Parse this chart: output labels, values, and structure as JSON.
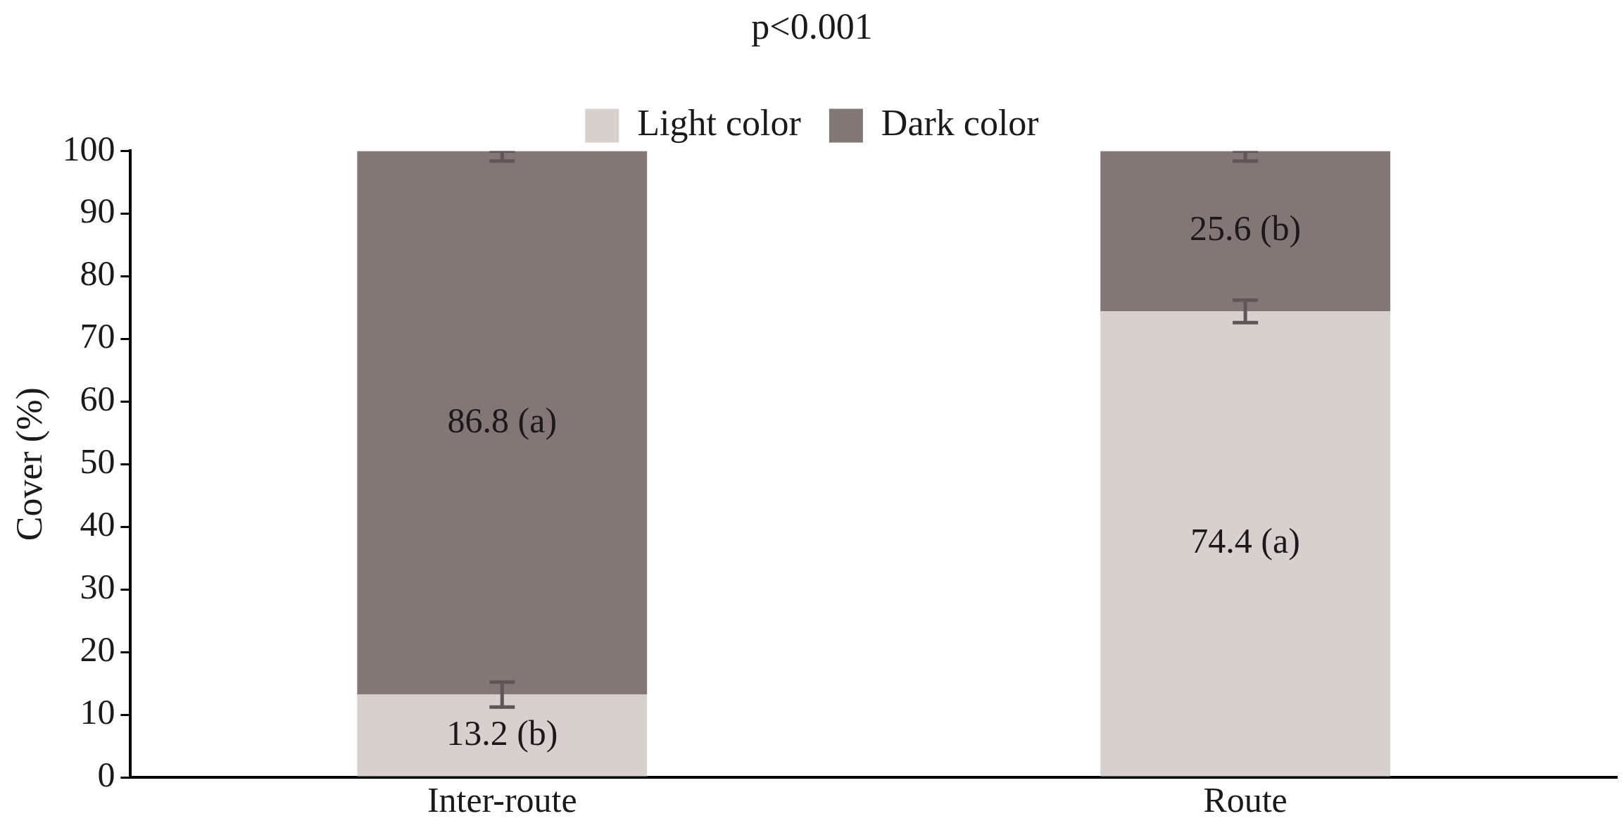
{
  "chart_data": {
    "type": "bar",
    "stacked": true,
    "title": "p<0.001",
    "ylabel": "Cover (%)",
    "categories": [
      "Inter-route",
      "Route"
    ],
    "series": [
      {
        "name": "Light color",
        "color": "#d7d0cd",
        "values": [
          13.2,
          74.4
        ],
        "errors": [
          2,
          1.8
        ],
        "value_labels": [
          "13.2 (b)",
          "74.4 (a)"
        ]
      },
      {
        "name": "Dark color",
        "color": "#827774",
        "values": [
          86.8,
          25.6
        ],
        "errors": [
          [
            98.4,
            100
          ],
          [
            98.4,
            100
          ]
        ],
        "value_labels": [
          "86.8 (a)",
          "25.6 (b)"
        ]
      }
    ],
    "ylim": [
      0,
      100
    ],
    "yticks": [
      0,
      10,
      20,
      30,
      40,
      50,
      60,
      70,
      80,
      90,
      100
    ],
    "grid": false,
    "legend": "top"
  }
}
